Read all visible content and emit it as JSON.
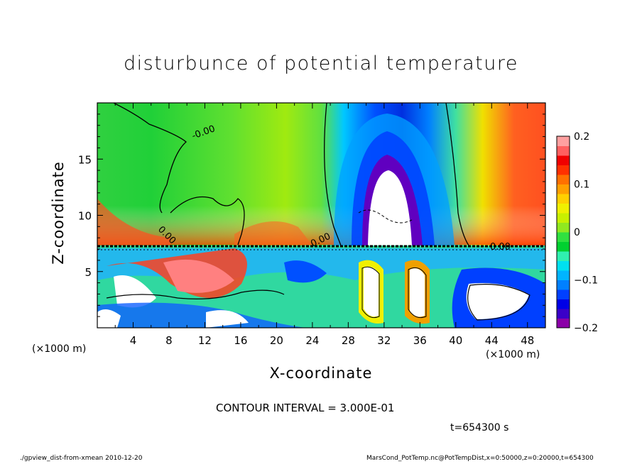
{
  "chart_data": {
    "type": "heatmap",
    "title": "disturbunce of potential temperature",
    "xlabel": "X-coordinate",
    "ylabel": "Z-coordinate",
    "x_unit_label": "(×1000 m)",
    "x_ticks": [
      "4",
      "8",
      "12",
      "16",
      "20",
      "24",
      "28",
      "32",
      "36",
      "40",
      "44",
      "48"
    ],
    "x_tick_values": [
      4,
      8,
      12,
      16,
      20,
      24,
      28,
      32,
      36,
      40,
      44,
      48
    ],
    "y_ticks": [
      "5",
      "10",
      "15"
    ],
    "y_tick_values": [
      5,
      10,
      15
    ],
    "xlim": [
      0,
      50
    ],
    "ylim": [
      0,
      20
    ],
    "colorbar": {
      "range": [
        -0.2,
        0.2
      ],
      "tick_labels": [
        "0.2",
        "0.1",
        "0",
        "−0.1",
        "−0.2"
      ],
      "tick_values": [
        0.2,
        0.1,
        0,
        -0.1,
        -0.2
      ],
      "colors": [
        "#8b00a8",
        "#3a00c8",
        "#0000e6",
        "#0040ff",
        "#0080ff",
        "#00b4ff",
        "#00e0f0",
        "#30f0b0",
        "#00d030",
        "#30e040",
        "#90e820",
        "#c8f000",
        "#f0f000",
        "#ffd000",
        "#ffa000",
        "#ff7000",
        "#ff3000",
        "#f00000",
        "#ff6060",
        "#ffa0a0"
      ]
    },
    "contour_labels": [
      "-0.00",
      "0.00",
      "0.00",
      "0.00"
    ],
    "contour_interval": "CONTOUR INTERVAL = 3.000E-01",
    "time_label": "t=654300 s"
  },
  "footer": {
    "left": "./gpview_dist-from-xmean  2010-12-20",
    "right": "MarsCond_PotTemp.nc@PotTempDist,x=0:50000,z=0:20000,t=654300"
  }
}
